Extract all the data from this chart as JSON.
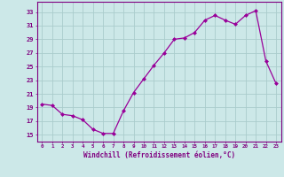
{
  "x": [
    0,
    1,
    2,
    3,
    4,
    5,
    6,
    7,
    8,
    9,
    10,
    11,
    12,
    13,
    14,
    15,
    16,
    17,
    18,
    19,
    20,
    21,
    22,
    23
  ],
  "y": [
    19.5,
    19.3,
    18.0,
    17.8,
    17.2,
    15.8,
    15.2,
    15.2,
    18.5,
    21.2,
    23.2,
    25.2,
    27.0,
    29.0,
    29.2,
    30.0,
    31.8,
    32.5,
    31.8,
    31.2,
    32.5,
    33.2,
    25.8,
    22.5
  ],
  "line_color": "#990099",
  "bg_color": "#cce8e8",
  "grid_color": "#aacccc",
  "xlabel": "Windchill (Refroidissement éolien,°C)",
  "ylabel_ticks": [
    15,
    17,
    19,
    21,
    23,
    25,
    27,
    29,
    31,
    33
  ],
  "ylim": [
    14.0,
    34.5
  ],
  "xlim": [
    -0.5,
    23.5
  ],
  "tick_color": "#800080",
  "label_color": "#800080",
  "spine_color": "#800080"
}
